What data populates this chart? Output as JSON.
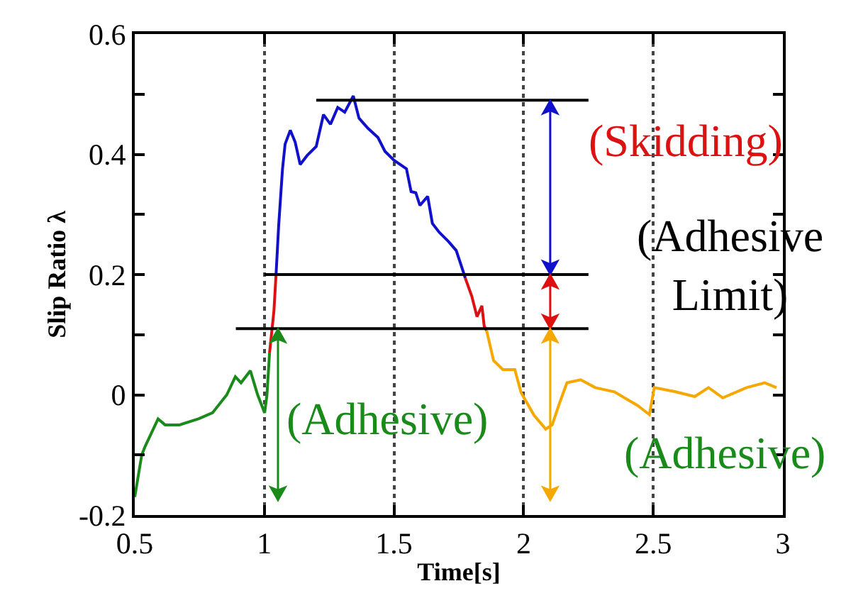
{
  "chart_data": {
    "type": "line",
    "xlabel": "Time[s]",
    "ylabel": "Slip Ratio λ",
    "xlim": [
      0.5,
      3
    ],
    "xticks": [
      0.5,
      1,
      1.5,
      2,
      2.5,
      3
    ],
    "ylim": [
      -0.2,
      0.6
    ],
    "yticks": [
      {
        "value": -0.2,
        "label": "-0.2"
      },
      {
        "value": -0.1,
        "label": null
      },
      0,
      {
        "value": 0.1,
        "label": null
      },
      0.2,
      {
        "value": 0.3,
        "label": null
      },
      0.4,
      {
        "value": 0.5,
        "label": null
      },
      0.6
    ],
    "grid": "x",
    "marker": "none",
    "line_style": "solid",
    "series": [
      {
        "color": "#1a8a1a",
        "x": [
          0.5,
          0.527,
          0.54,
          0.59,
          0.617,
          0.673,
          0.746,
          0.8,
          0.855,
          0.888,
          0.91,
          0.946,
          0.974,
          1.001,
          1.01,
          1.02
        ],
        "values": [
          -0.17,
          -0.1,
          -0.086,
          -0.04,
          -0.05,
          -0.05,
          -0.04,
          -0.03,
          0.0,
          0.03,
          0.02,
          0.04,
          0.0,
          -0.03,
          0.0,
          0.07
        ]
      },
      {
        "color": "#dd1111",
        "x": [
          1.02,
          1.037,
          1.045
        ],
        "values": [
          0.07,
          0.14,
          0.2
        ]
      },
      {
        "color": "#1111cc",
        "x": [
          1.045,
          1.055,
          1.064,
          1.07,
          1.08,
          1.1,
          1.119,
          1.138,
          1.165,
          1.2,
          1.228,
          1.255,
          1.283,
          1.31,
          1.343,
          1.365,
          1.4,
          1.438,
          1.465,
          1.5,
          1.548,
          1.566,
          1.584,
          1.6,
          1.63,
          1.648,
          1.675,
          1.71,
          1.74,
          1.767,
          1.775
        ],
        "values": [
          0.2,
          0.28,
          0.338,
          0.376,
          0.417,
          0.44,
          0.42,
          0.383,
          0.398,
          0.413,
          0.466,
          0.45,
          0.478,
          0.47,
          0.497,
          0.46,
          0.443,
          0.428,
          0.405,
          0.39,
          0.376,
          0.338,
          0.336,
          0.315,
          0.33,
          0.285,
          0.27,
          0.255,
          0.24,
          0.205,
          0.194
        ]
      },
      {
        "color": "#dd1111",
        "x": [
          1.775,
          1.8,
          1.82,
          1.839,
          1.848,
          1.857
        ],
        "values": [
          0.194,
          0.164,
          0.13,
          0.148,
          0.114,
          0.107
        ]
      },
      {
        "color": "#f5a800",
        "x": [
          1.857,
          1.884,
          1.92,
          1.966,
          1.99,
          2.04,
          2.085,
          2.11,
          2.14,
          2.167,
          2.22,
          2.276,
          2.35,
          2.44,
          2.485,
          2.504,
          2.586,
          2.66,
          2.713,
          2.768,
          2.86,
          2.93,
          2.975
        ],
        "values": [
          0.107,
          0.057,
          0.042,
          0.042,
          0.004,
          -0.034,
          -0.057,
          -0.05,
          -0.012,
          0.02,
          0.025,
          0.012,
          0.005,
          -0.018,
          -0.033,
          0.012,
          0.005,
          -0.003,
          0.012,
          -0.005,
          0.012,
          0.02,
          0.012
        ]
      },
      {
        "color": "#000000",
        "x": [
          1.2,
          2.25
        ],
        "values": [
          0.49,
          0.49
        ]
      },
      {
        "color": "#000000",
        "x": [
          1.0,
          2.25
        ],
        "values": [
          0.2,
          0.2
        ]
      },
      {
        "color": "#000000",
        "x": [
          0.89,
          2.25
        ],
        "values": [
          0.11,
          0.11
        ]
      }
    ],
    "annotations": [
      "(Skidding)",
      "(Adhesive\nLimit)",
      "(Adhesive)",
      "(Adhesive)"
    ]
  }
}
